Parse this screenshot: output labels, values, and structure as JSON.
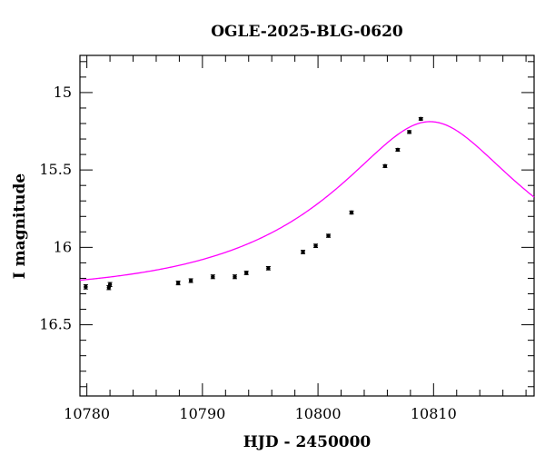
{
  "chart_data": {
    "type": "scatter",
    "title": "OGLE-2025-BLG-0620",
    "xlabel": "HJD - 2450000",
    "ylabel": "I magnitude",
    "xlim": [
      10779.4,
      10818.7
    ],
    "ylim": [
      16.96,
      14.76
    ],
    "y_inverted": true,
    "x_ticks": [
      10780,
      10790,
      10800,
      10810
    ],
    "x_tick_labels": [
      "10780",
      "10790",
      "10800",
      "10810"
    ],
    "y_ticks": [
      15,
      15.5,
      16,
      16.5
    ],
    "y_tick_labels": [
      "15",
      "15.5",
      "16",
      "16.5"
    ],
    "x_minor_step": 2,
    "y_minor_step": 0.1,
    "grid": false,
    "colors": {
      "points": "#000000",
      "model": "#ff00ff",
      "frame": "#000000"
    },
    "series": [
      {
        "type": "scatter",
        "x": [
          10779.9,
          10781.9,
          10782.0,
          10787.9,
          10789.0,
          10790.9,
          10792.8,
          10793.8,
          10795.7,
          10798.7,
          10799.8,
          10800.9,
          10802.9,
          10805.8,
          10806.9,
          10807.9,
          10808.9
        ],
        "y": [
          16.255,
          16.26,
          16.24,
          16.23,
          16.215,
          16.19,
          16.19,
          16.165,
          16.135,
          16.03,
          15.99,
          15.925,
          15.775,
          15.475,
          15.37,
          15.255,
          15.17
        ],
        "yerr": [
          0.014,
          0.013,
          0.013,
          0.012,
          0.012,
          0.012,
          0.012,
          0.011,
          0.011,
          0.011,
          0.011,
          0.01,
          0.01,
          0.009,
          0.009,
          0.009,
          0.008
        ]
      },
      {
        "type": "line",
        "model": {
          "baseline_mag": 16.295,
          "t0": 10809.7,
          "u0": 0.38,
          "tE": 17
        }
      }
    ]
  }
}
